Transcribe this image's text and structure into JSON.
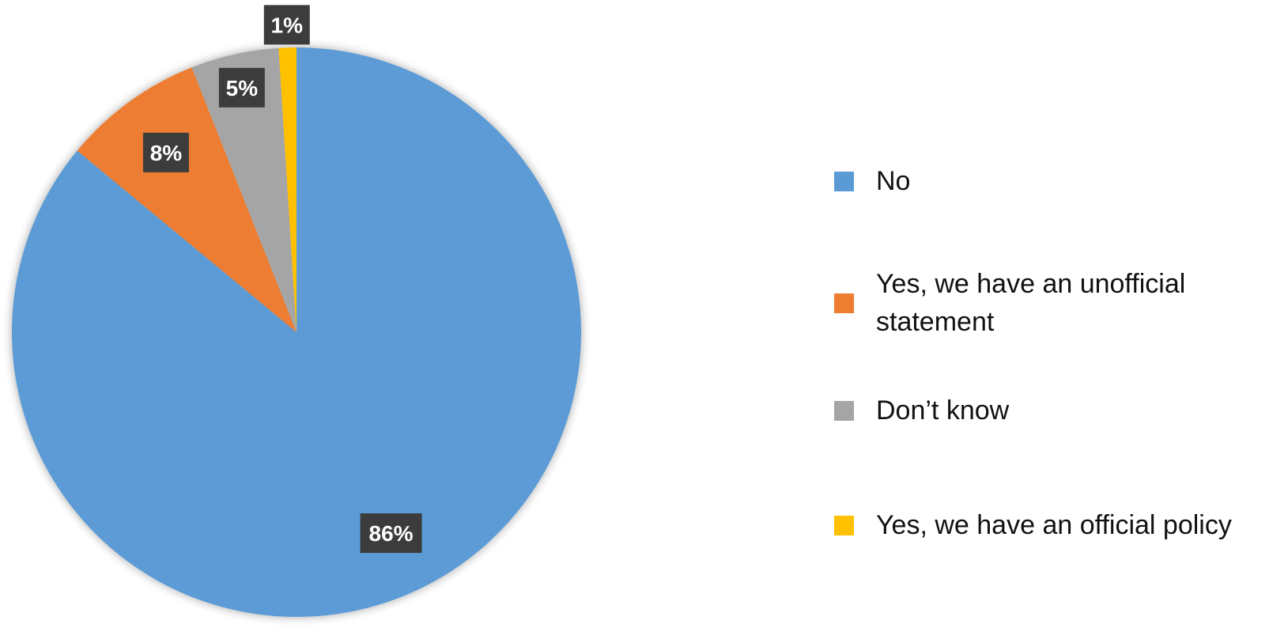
{
  "chart_data": {
    "type": "pie",
    "categories": [
      "No",
      "Yes, we have an unofficial statement",
      "Don’t know",
      "Yes, we have an official policy"
    ],
    "values": [
      86,
      8,
      5,
      1
    ],
    "data_labels": [
      "86%",
      "8%",
      "5%",
      "1%"
    ],
    "colors": [
      "#5b9bd5",
      "#ed7d31",
      "#a5a5a5",
      "#ffc000"
    ],
    "legend_position": "right",
    "start_angle": "top",
    "direction": "clockwise"
  }
}
